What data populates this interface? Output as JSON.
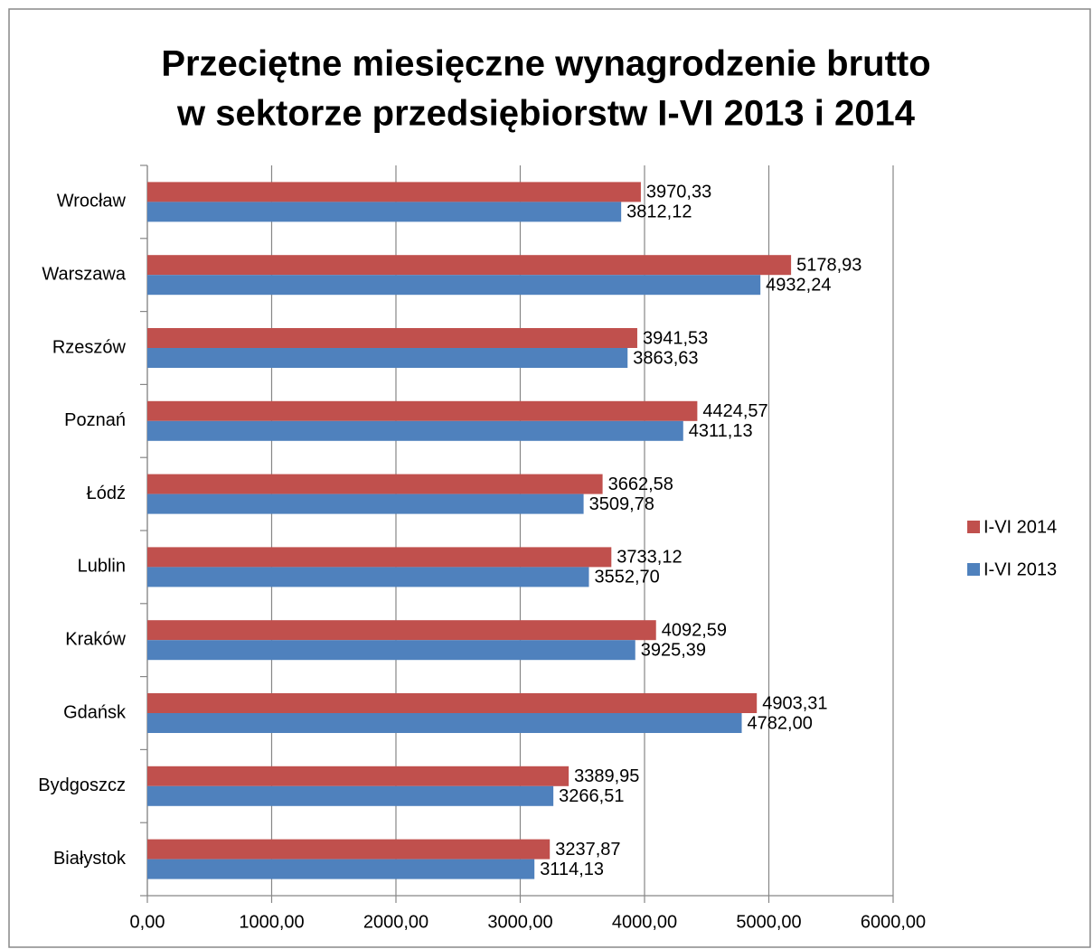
{
  "chart_data": {
    "type": "hbar",
    "title": [
      "Przeciętne miesięczne wynagrodzenie brutto",
      "w sektorze przedsiębiorstw I-VI 2013 i 2014"
    ],
    "categories": [
      "Wrocław",
      "Warszawa",
      "Rzeszów",
      "Poznań",
      "Łódź",
      "Lublin",
      "Kraków",
      "Gdańsk",
      "Bydgoszcz",
      "Białystok"
    ],
    "series": [
      {
        "name": "I-VI 2014",
        "color": "#c0504d",
        "values": [
          3970.33,
          5178.93,
          3941.53,
          4424.57,
          3662.58,
          3733.12,
          4092.59,
          4903.31,
          3389.95,
          3237.87
        ],
        "value_labels": [
          "3970,33",
          "5178,93",
          "3941,53",
          "4424,57",
          "3662,58",
          "3733,12",
          "4092,59",
          "4903,31",
          "3389,95",
          "3237,87"
        ]
      },
      {
        "name": "I-VI 2013",
        "color": "#4f81bd",
        "values": [
          3812.12,
          4932.24,
          3863.63,
          4311.13,
          3509.78,
          3552.7,
          3925.39,
          4782.0,
          3266.51,
          3114.13
        ],
        "value_labels": [
          "3812,12",
          "4932,24",
          "3863,63",
          "4311,13",
          "3509,78",
          "3552,70",
          "3925,39",
          "4782,00",
          "3266,51",
          "3114,13"
        ]
      }
    ],
    "xlim": [
      0,
      6000
    ],
    "xticks": [
      {
        "value": 0,
        "label": "0,00"
      },
      {
        "value": 1000,
        "label": "1000,00"
      },
      {
        "value": 2000,
        "label": "2000,00"
      },
      {
        "value": 3000,
        "label": "3000,00"
      },
      {
        "value": 4000,
        "label": "4000,00"
      },
      {
        "value": 5000,
        "label": "5000,00"
      },
      {
        "value": 6000,
        "label": "6000,00"
      }
    ],
    "grid": true,
    "legend": "right"
  }
}
